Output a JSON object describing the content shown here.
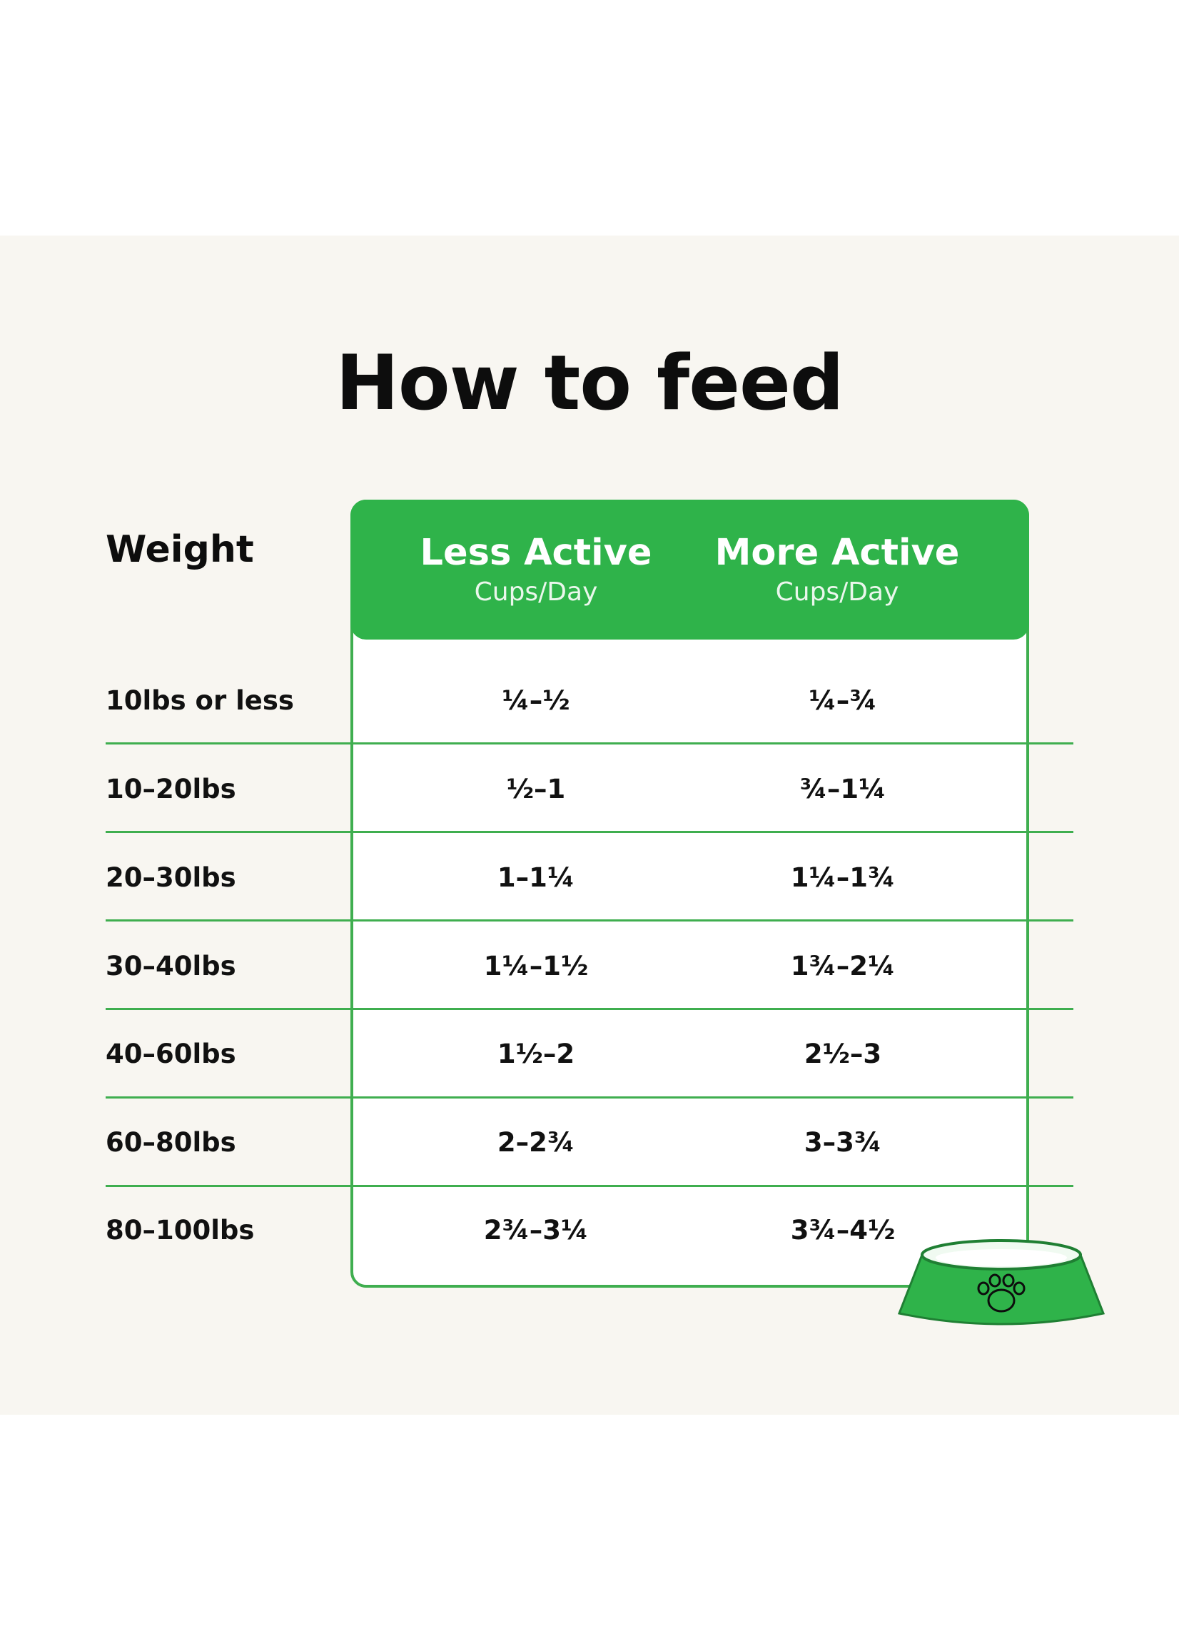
{
  "title": "How to feed",
  "table": {
    "weight_header": "Weight",
    "columns": [
      {
        "label": "Less Active",
        "unit": "Cups/Day"
      },
      {
        "label": "More Active",
        "unit": "Cups/Day"
      }
    ],
    "rows": [
      {
        "weight": "10lbs or less",
        "less": "¼–½",
        "more": "¼–¾"
      },
      {
        "weight": "10–20lbs",
        "less": "½–1",
        "more": "¾–1¼"
      },
      {
        "weight": "20–30lbs",
        "less": "1–1¼",
        "more": "1¼–1¾"
      },
      {
        "weight": "30–40lbs",
        "less": "1¼–1½",
        "more": "1¾–2¼"
      },
      {
        "weight": "40–60lbs",
        "less": "1½–2",
        "more": "2½–3"
      },
      {
        "weight": "60–80lbs",
        "less": "2–2¾",
        "more": "3–3¾"
      },
      {
        "weight": "80–100lbs",
        "less": "2¾–3¼",
        "more": "3¾–4½"
      }
    ]
  },
  "colors": {
    "accent": "#2fb34a",
    "border": "#3fae4f",
    "panel_bg": "#f8f6f1"
  },
  "icons": {
    "bowl": "dog-bowl-icon",
    "paw": "paw-print-icon"
  }
}
